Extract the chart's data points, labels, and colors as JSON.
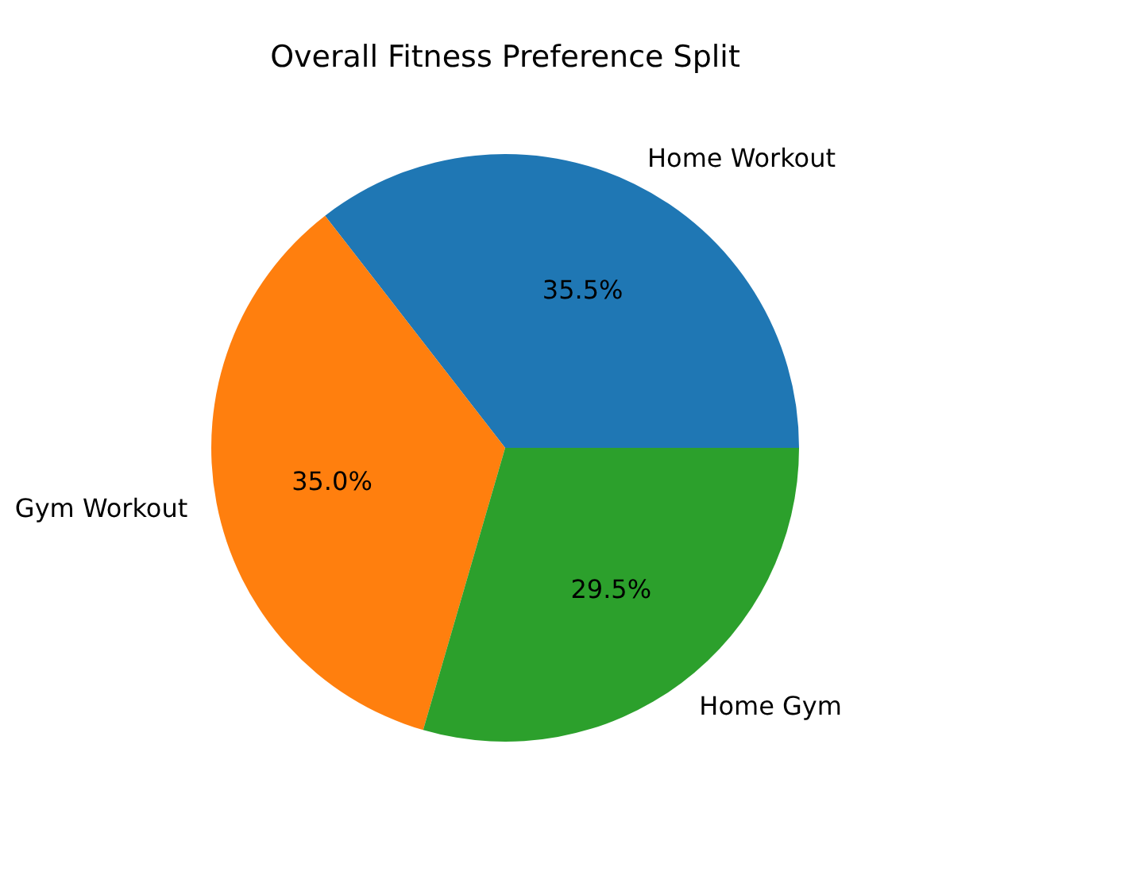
{
  "chart_data": {
    "type": "pie",
    "title": "Overall Fitness Preference Split",
    "categories": [
      "Home Workout",
      "Gym Workout",
      "Home Gym"
    ],
    "values": [
      35.5,
      35.0,
      29.5
    ],
    "colors": [
      "#1f77b4",
      "#ff7f0e",
      "#2ca02c"
    ],
    "value_labels": [
      "35.5%",
      "35.0%",
      "29.5%"
    ]
  }
}
